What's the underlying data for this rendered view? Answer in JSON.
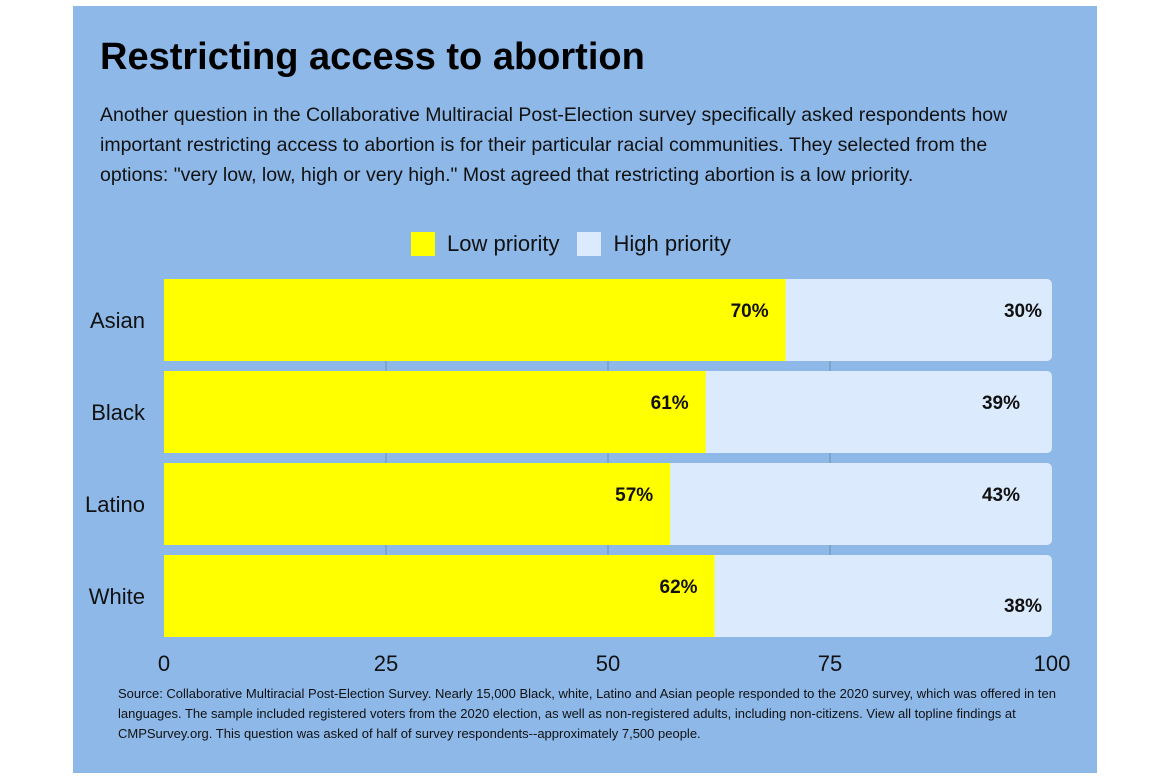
{
  "title": "Restricting access to abortion",
  "subtitle": "Another question in the Collaborative Multiracial Post-Election survey specifically asked respondents how important restricting access to abortion is for their particular racial communities. They selected from the options: \"very low, low, high or very high.\" Most agreed that restricting abortion is a low priority.",
  "source": "Source: Collaborative Multiracial Post-Election Survey. Nearly 15,000 Black, white, Latino and Asian people responded to the 2020 survey, which was offered in ten languages. The sample included registered voters from the 2020 election, as well as non-registered adults, including non-citizens. View all topline findings at CMPSurvey.org. This question was asked of half of survey respondents--approximately 7,500 people.",
  "colors": {
    "background": "#8db8e8",
    "low": "#ffff00",
    "high": "#dbeafc"
  },
  "chart_data": {
    "type": "bar",
    "orientation": "horizontal",
    "stacked": true,
    "categories": [
      "Asian",
      "Black",
      "Latino",
      "White"
    ],
    "series": [
      {
        "name": "Low priority",
        "values": [
          70,
          61,
          57,
          62
        ],
        "labels": [
          "70%",
          "61%",
          "57%",
          "62%"
        ]
      },
      {
        "name": "High priority",
        "values": [
          30,
          39,
          43,
          38
        ],
        "labels": [
          "30%",
          "39%",
          "43%",
          "38%"
        ]
      }
    ],
    "xlim": [
      0,
      100
    ],
    "xticks": [
      "0",
      "25",
      "50",
      "75",
      "100"
    ],
    "legend": "top-center",
    "grid": true
  }
}
